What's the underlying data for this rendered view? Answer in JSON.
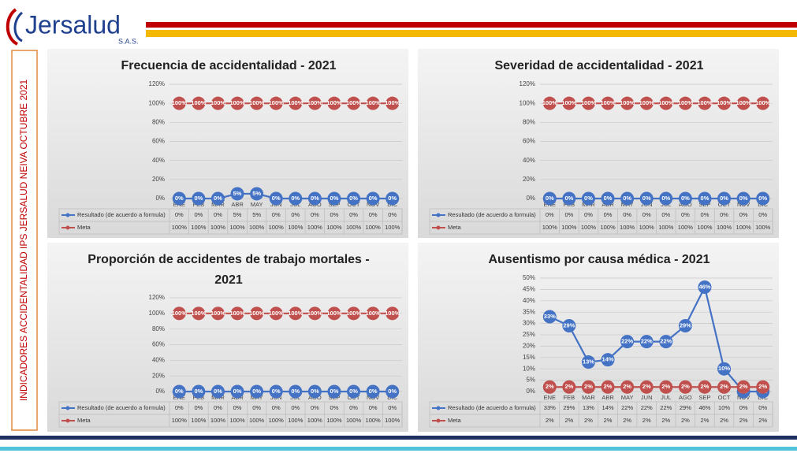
{
  "header": {
    "logo": "Jersalud",
    "logo_sub": "S.A.S."
  },
  "side_title": "INDICADORES ACCIDENTALIDAD IPS JERSALUD NEIVA  OCTUBRE 2021",
  "chart_data": [
    {
      "type": "line",
      "title": "Frecuencia de accidentalidad - 2021",
      "categories": [
        "ENE",
        "FEB",
        "MAR",
        "ABR",
        "MAY",
        "JUN",
        "JUL",
        "AGO",
        "SEP",
        "OCT",
        "NOV",
        "DIC"
      ],
      "ylim": [
        0,
        120
      ],
      "yticks": [
        {
          "value": 0,
          "label": "0%"
        },
        {
          "value": 20,
          "label": "20%"
        },
        {
          "value": 40,
          "label": "40%"
        },
        {
          "value": 60,
          "label": "60%"
        },
        {
          "value": 80,
          "label": "80%"
        },
        {
          "value": 100,
          "label": "100%"
        },
        {
          "value": 120,
          "label": "120%"
        }
      ],
      "series": [
        {
          "name": "Resultado (de acuerdo a formula)",
          "color": "#4472c4",
          "values": [
            0,
            0,
            0,
            5,
            5,
            0,
            0,
            0,
            0,
            0,
            0,
            0
          ],
          "value_labels": [
            "0%",
            "0%",
            "0%",
            "5%",
            "5%",
            "0%",
            "0%",
            "0%",
            "0%",
            "0%",
            "0%",
            "0%"
          ]
        },
        {
          "name": "Meta",
          "color": "#c0504d",
          "values": [
            100,
            100,
            100,
            100,
            100,
            100,
            100,
            100,
            100,
            100,
            100,
            100
          ],
          "value_labels": [
            "100%",
            "100%",
            "100%",
            "100%",
            "100%",
            "100%",
            "100%",
            "100%",
            "100%",
            "100%",
            "100%",
            "100%"
          ]
        }
      ]
    },
    {
      "type": "line",
      "title": "Severidad de accidentalidad - 2021",
      "categories": [
        "ENE",
        "FEB",
        "MAR",
        "ABR",
        "MAY",
        "JUN",
        "JUL",
        "AGO",
        "SEP",
        "OCT",
        "NOV",
        "DIC"
      ],
      "ylim": [
        0,
        120
      ],
      "yticks": [
        {
          "value": 0,
          "label": "0%"
        },
        {
          "value": 20,
          "label": "20%"
        },
        {
          "value": 40,
          "label": "40%"
        },
        {
          "value": 60,
          "label": "60%"
        },
        {
          "value": 80,
          "label": "80%"
        },
        {
          "value": 100,
          "label": "100%"
        },
        {
          "value": 120,
          "label": "120%"
        }
      ],
      "series": [
        {
          "name": "Resultado (de acuerdo a formula)",
          "color": "#4472c4",
          "values": [
            0,
            0,
            0,
            0,
            0,
            0,
            0,
            0,
            0,
            0,
            0,
            0
          ],
          "value_labels": [
            "0%",
            "0%",
            "0%",
            "0%",
            "0%",
            "0%",
            "0%",
            "0%",
            "0%",
            "0%",
            "0%",
            "0%"
          ]
        },
        {
          "name": "Meta",
          "color": "#c0504d",
          "values": [
            100,
            100,
            100,
            100,
            100,
            100,
            100,
            100,
            100,
            100,
            100,
            100
          ],
          "value_labels": [
            "100%",
            "100%",
            "100%",
            "100%",
            "100%",
            "100%",
            "100%",
            "100%",
            "100%",
            "100%",
            "100%",
            "100%"
          ]
        }
      ]
    },
    {
      "type": "line",
      "title": "Proporción de accidentes de trabajo mortales  - 2021",
      "categories": [
        "ENE",
        "FEB",
        "MAR",
        "ABR",
        "MAY",
        "JUN",
        "JUL",
        "AGO",
        "SEP",
        "OCT",
        "NOV",
        "DIC"
      ],
      "ylim": [
        0,
        120
      ],
      "yticks": [
        {
          "value": 0,
          "label": "0%"
        },
        {
          "value": 20,
          "label": "20%"
        },
        {
          "value": 40,
          "label": "40%"
        },
        {
          "value": 60,
          "label": "60%"
        },
        {
          "value": 80,
          "label": "80%"
        },
        {
          "value": 100,
          "label": "100%"
        },
        {
          "value": 120,
          "label": "120%"
        }
      ],
      "series": [
        {
          "name": "Resultado (de acuerdo a formula)",
          "color": "#4472c4",
          "values": [
            0,
            0,
            0,
            0,
            0,
            0,
            0,
            0,
            0,
            0,
            0,
            0
          ],
          "value_labels": [
            "0%",
            "0%",
            "0%",
            "0%",
            "0%",
            "0%",
            "0%",
            "0%",
            "0%",
            "0%",
            "0%",
            "0%"
          ]
        },
        {
          "name": "Meta",
          "color": "#c0504d",
          "values": [
            100,
            100,
            100,
            100,
            100,
            100,
            100,
            100,
            100,
            100,
            100,
            100
          ],
          "value_labels": [
            "100%",
            "100%",
            "100%",
            "100%",
            "100%",
            "100%",
            "100%",
            "100%",
            "100%",
            "100%",
            "100%",
            "100%"
          ]
        }
      ]
    },
    {
      "type": "line",
      "title": "Ausentismo por causa médica - 2021",
      "categories": [
        "ENE",
        "FEB",
        "MAR",
        "ABR",
        "MAY",
        "JUN",
        "JUL",
        "AGO",
        "SEP",
        "OCT",
        "NOV",
        "DIC"
      ],
      "ylim": [
        0,
        50
      ],
      "yticks": [
        {
          "value": 0,
          "label": "0%"
        },
        {
          "value": 5,
          "label": "5%"
        },
        {
          "value": 10,
          "label": "10%"
        },
        {
          "value": 15,
          "label": "15%"
        },
        {
          "value": 20,
          "label": "20%"
        },
        {
          "value": 25,
          "label": "25%"
        },
        {
          "value": 30,
          "label": "30%"
        },
        {
          "value": 35,
          "label": "35%"
        },
        {
          "value": 40,
          "label": "40%"
        },
        {
          "value": 45,
          "label": "45%"
        },
        {
          "value": 50,
          "label": "50%"
        }
      ],
      "series": [
        {
          "name": "Resultado (de acuerdo a formula)",
          "color": "#4472c4",
          "values": [
            33,
            29,
            13,
            14,
            22,
            22,
            22,
            29,
            46,
            10,
            0,
            0
          ],
          "value_labels": [
            "33%",
            "29%",
            "13%",
            "14%",
            "22%",
            "22%",
            "22%",
            "29%",
            "46%",
            "10%",
            "0%",
            "0%"
          ]
        },
        {
          "name": "Meta",
          "color": "#c0504d",
          "values": [
            2,
            2,
            2,
            2,
            2,
            2,
            2,
            2,
            2,
            2,
            2,
            2
          ],
          "value_labels": [
            "2%",
            "2%",
            "2%",
            "2%",
            "2%",
            "2%",
            "2%",
            "2%",
            "2%",
            "2%",
            "2%",
            "2%"
          ]
        }
      ]
    }
  ]
}
